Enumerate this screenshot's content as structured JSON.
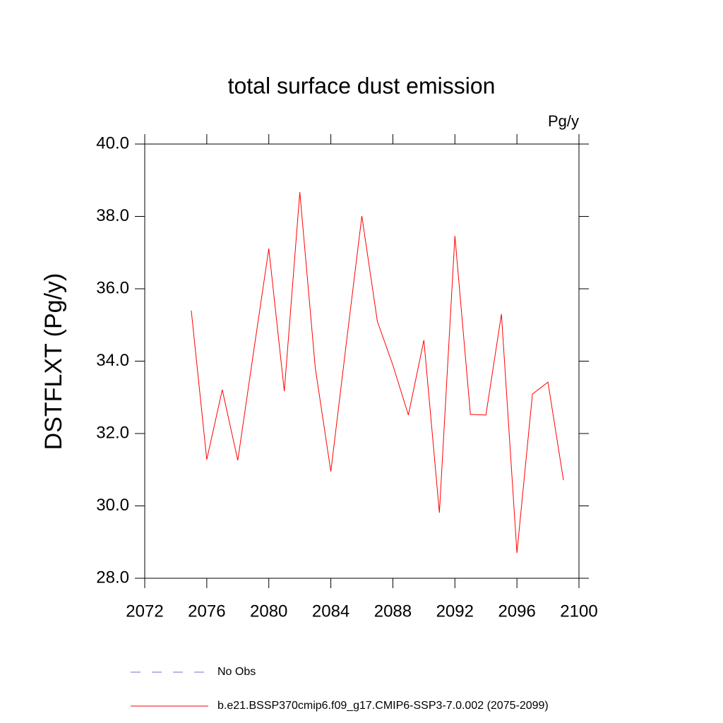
{
  "chart_data": {
    "type": "line",
    "title": "total surface dust emission",
    "units": "Pg/y",
    "y_label": "DSTFLXT  (Pg/y)",
    "x": [
      2075,
      2076,
      2077,
      2078,
      2079,
      2080,
      2081,
      2082,
      2083,
      2084,
      2085,
      2086,
      2087,
      2088,
      2089,
      2090,
      2091,
      2092,
      2093,
      2094,
      2095,
      2096,
      2097,
      2098,
      2099
    ],
    "series": [
      {
        "name": "No Obs",
        "color": "#7070d0",
        "dashed": true,
        "values": [
          null,
          null,
          null,
          null,
          null,
          null,
          null,
          null,
          null,
          null,
          null,
          null,
          null,
          null,
          null,
          null,
          null,
          null,
          null,
          null,
          null,
          null,
          null,
          null,
          null
        ]
      },
      {
        "name": "b.e21.BSSP370cmip6.f09_g17.CMIP6-SSP3-7.0.002 (2075-2099)",
        "color": "#ff0000",
        "dashed": false,
        "values": [
          35.4,
          31.28,
          33.21,
          31.26,
          34.2,
          37.11,
          33.17,
          38.67,
          33.8,
          30.95,
          34.5,
          38.01,
          35.1,
          33.89,
          32.51,
          34.58,
          29.81,
          37.46,
          32.53,
          32.51,
          35.3,
          28.7,
          33.09,
          33.42,
          30.71
        ]
      }
    ],
    "xlim": [
      2072,
      2100
    ],
    "ylim": [
      28,
      40
    ],
    "xticks": [
      2072,
      2076,
      2080,
      2084,
      2088,
      2092,
      2096,
      2100
    ],
    "yticks": [
      {
        "value": 28,
        "label": "28.0"
      },
      {
        "value": 30,
        "label": "30.0"
      },
      {
        "value": 32,
        "label": "32.0"
      },
      {
        "value": 34,
        "label": "34.0"
      },
      {
        "value": 36,
        "label": "36.0"
      },
      {
        "value": 38,
        "label": "38.0"
      },
      {
        "value": 40,
        "label": "40.0"
      }
    ],
    "grid": false
  }
}
